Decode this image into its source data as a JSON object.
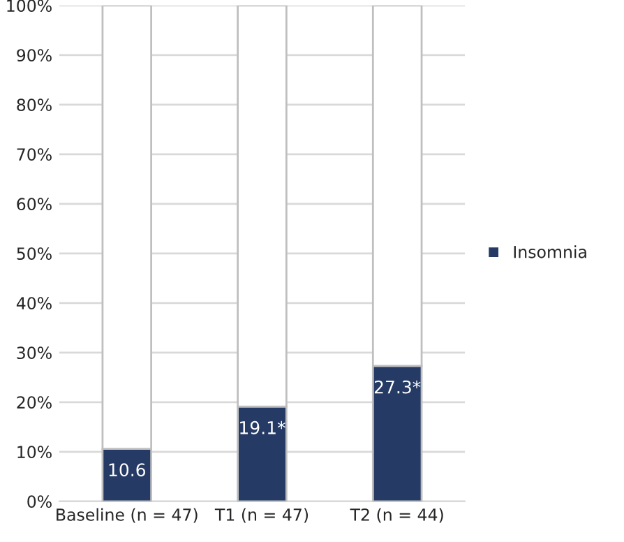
{
  "chart_data": {
    "type": "bar",
    "stacked": true,
    "categories": [
      "Baseline (n = 47)",
      "T1 (n = 47)",
      "T2 (n = 44)"
    ],
    "series": [
      {
        "name": "Insomnia",
        "color": "#253a64",
        "values": [
          10.6,
          19.1,
          27.3
        ],
        "value_labels": [
          "10.6",
          "19.1*",
          "27.3*"
        ]
      },
      {
        "color": "#ffffff",
        "values": [
          89.4,
          80.9,
          72.7
        ]
      }
    ],
    "ylim": [
      0,
      100
    ],
    "yticks": [
      {
        "value": 0,
        "label": "0%"
      },
      {
        "value": 10,
        "label": "10%"
      },
      {
        "value": 20,
        "label": "20%"
      },
      {
        "value": 30,
        "label": "30%"
      },
      {
        "value": 40,
        "label": "40%"
      },
      {
        "value": 50,
        "label": "50%"
      },
      {
        "value": 60,
        "label": "60%"
      },
      {
        "value": 70,
        "label": "70%"
      },
      {
        "value": 80,
        "label": "80%"
      },
      {
        "value": 90,
        "label": "90%"
      },
      {
        "value": 100,
        "label": "100%"
      }
    ],
    "grid": "y",
    "legend": "right"
  }
}
